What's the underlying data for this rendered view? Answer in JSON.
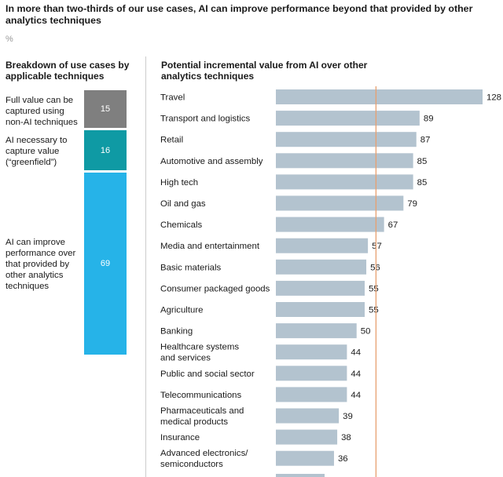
{
  "title": "In more than two-thirds of our use cases, AI can improve performance beyond that provided by other analytics techniques",
  "unit": "%",
  "left_panel": {
    "heading": "Breakdown of use cases by applicable techniques",
    "segments": [
      {
        "label": "Full value can be captured using non-AI techniques",
        "value": 15,
        "color": "#7f7f7f"
      },
      {
        "label": "AI necessary to capture value (“greenfield”)",
        "value": 16,
        "color": "#0f9aa4"
      },
      {
        "label": "AI can improve performance over that provided by other analytics techniques",
        "value": 69,
        "color": "#26b3e8"
      }
    ]
  },
  "right_panel": {
    "heading": "Potential incremental value from AI over other analytics techniques"
  },
  "chart_data": {
    "type": "bar",
    "orientation": "horizontal",
    "title": "Potential incremental value from AI over other analytics techniques",
    "unit": "%",
    "categories": [
      "Travel",
      "Transport and logistics",
      "Retail",
      "Automotive and assembly",
      "High tech",
      "Oil and gas",
      "Chemicals",
      "Media and entertainment",
      "Basic materials",
      "Consumer packaged goods",
      "Agriculture",
      "Banking",
      "Healthcare systems and services",
      "Public and social sector",
      "Telecommunications",
      "Pharmaceuticals and medical products",
      "Insurance",
      "Advanced electronics/ semiconductors"
    ],
    "category_lines": [
      [
        "Travel"
      ],
      [
        "Transport and logistics"
      ],
      [
        "Retail"
      ],
      [
        "Automotive and assembly"
      ],
      [
        "High tech"
      ],
      [
        "Oil and gas"
      ],
      [
        "Chemicals"
      ],
      [
        "Media and entertainment"
      ],
      [
        "Basic materials"
      ],
      [
        "Consumer packaged goods"
      ],
      [
        "Agriculture"
      ],
      [
        "Banking"
      ],
      [
        "Healthcare systems",
        "and services"
      ],
      [
        "Public and social sector"
      ],
      [
        "Telecommunications"
      ],
      [
        "Pharmaceuticals and",
        "medical products"
      ],
      [
        "Insurance"
      ],
      [
        "Advanced electronics/",
        "semiconductors"
      ]
    ],
    "values": [
      128,
      89,
      87,
      85,
      85,
      79,
      67,
      57,
      56,
      55,
      55,
      50,
      44,
      44,
      44,
      39,
      38,
      36
    ],
    "reference_line": 62,
    "xlim": [
      0,
      128
    ],
    "bar_color": "#b3c3cf",
    "reference_color": "#e8a070"
  }
}
